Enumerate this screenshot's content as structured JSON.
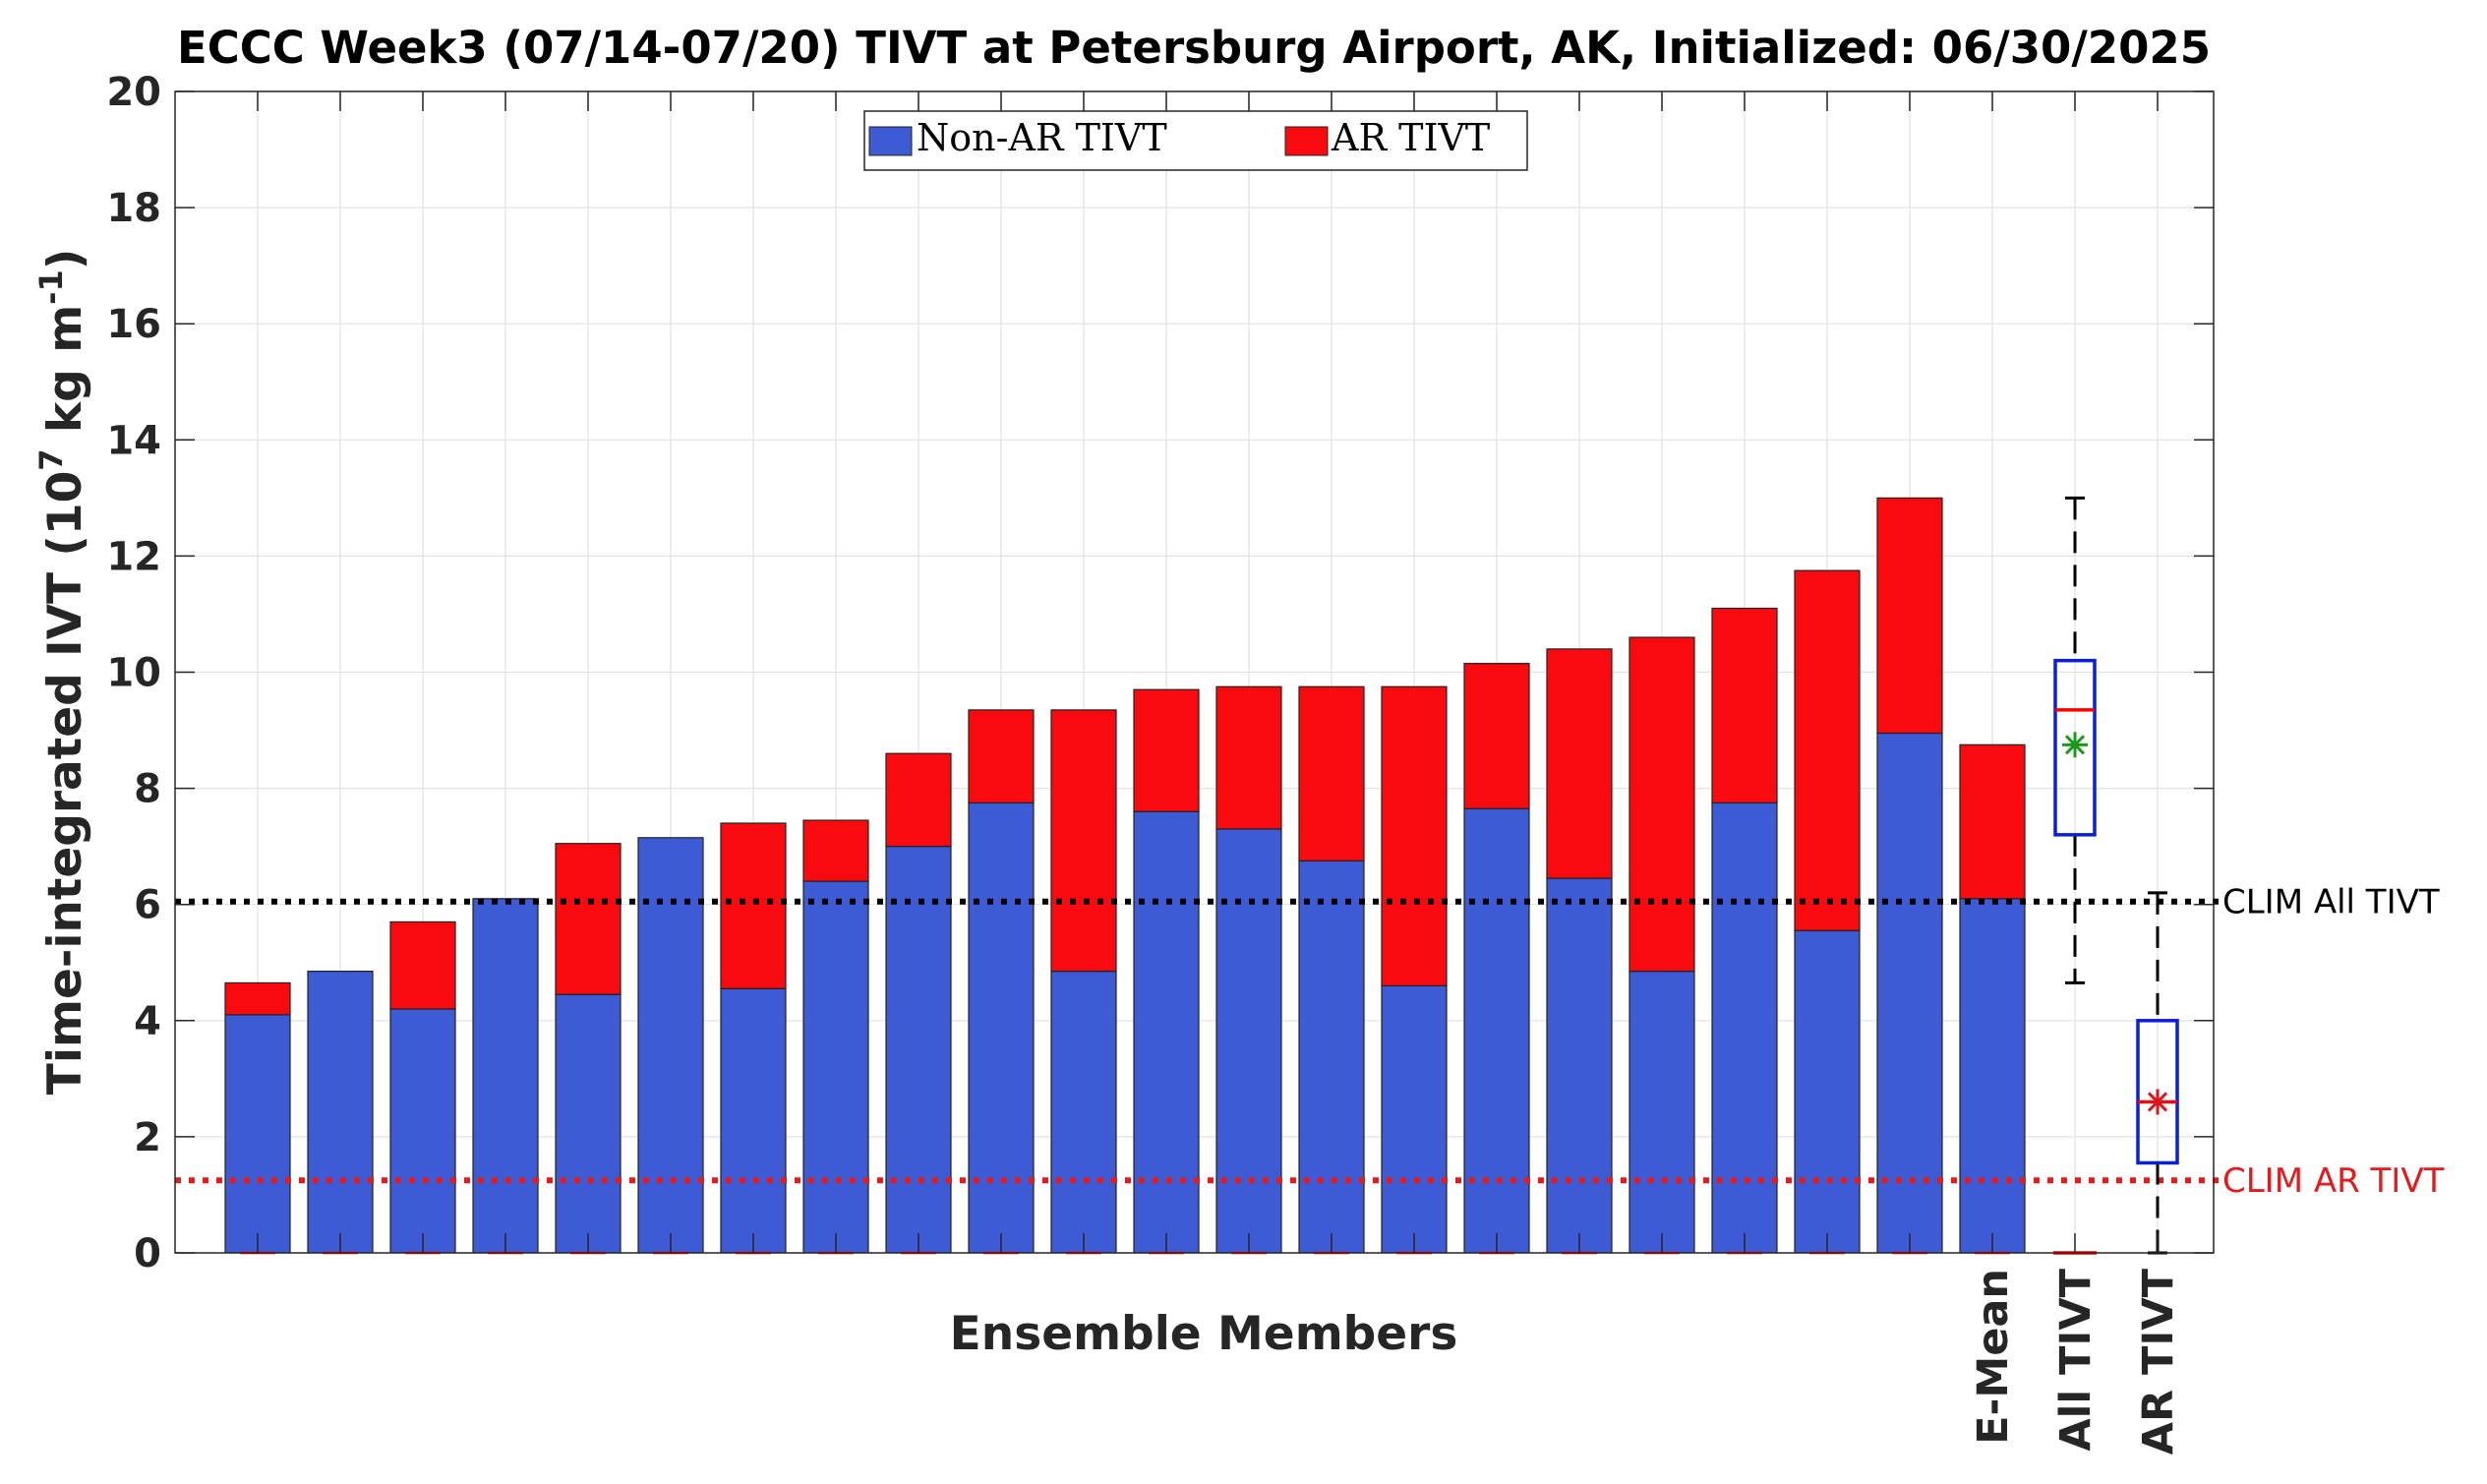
{
  "chart_data": {
    "type": "bar",
    "stacked": true,
    "title": "ECCC Week3 (07/14-07/20) TIVT at Petersburg Airport, AK, Initialized: 06/30/2025",
    "xlabel": "Ensemble Members",
    "ylabel": "Time-integrated IVT (10⁷ kg m⁻¹)",
    "ylim": [
      0,
      20
    ],
    "yticks": [
      0,
      2,
      4,
      6,
      8,
      10,
      12,
      14,
      16,
      18,
      20
    ],
    "grid": true,
    "legend_position": "top-center",
    "colors": {
      "non_ar": "#3d5bd5",
      "ar": "#f90a0e",
      "clim_all": "#000000",
      "clim_ar": "#e41a1c",
      "box": "#0a1fd6",
      "median": "#ff0000",
      "mean_all": "#1a9a1a",
      "mean_ar": "#e0141a"
    },
    "series": [
      {
        "name": "Non-AR TIVT",
        "values": [
          4.1,
          4.85,
          4.2,
          6.1,
          4.45,
          7.15,
          4.55,
          6.4,
          7.0,
          7.75,
          4.85,
          7.6,
          7.3,
          6.75,
          4.6,
          7.65,
          6.45,
          4.85,
          7.75,
          5.55,
          8.95,
          6.1
        ]
      },
      {
        "name": "AR TIVT",
        "values": [
          0.55,
          0.0,
          1.5,
          0.0,
          2.6,
          0.0,
          2.85,
          1.05,
          1.6,
          1.6,
          4.5,
          2.1,
          2.45,
          3.0,
          5.15,
          2.5,
          3.95,
          5.75,
          3.35,
          6.2,
          4.05,
          2.65
        ]
      }
    ],
    "special_labels": [
      "E-Mean",
      "All TIVT",
      "AR TIVT"
    ],
    "boxplots": [
      {
        "label": "All TIVT",
        "min": 4.65,
        "q1": 7.2,
        "median": 9.35,
        "q3": 10.2,
        "max": 13.0,
        "mean": 8.75
      },
      {
        "label": "AR TIVT",
        "min": 0.0,
        "q1": 1.55,
        "median": 2.6,
        "q3": 4.0,
        "max": 6.2,
        "mean": 2.6
      }
    ],
    "reference_lines": [
      {
        "label": "CLIM All TIVT",
        "value": 6.05
      },
      {
        "label": "CLIM AR TIVT",
        "value": 1.25
      }
    ]
  }
}
